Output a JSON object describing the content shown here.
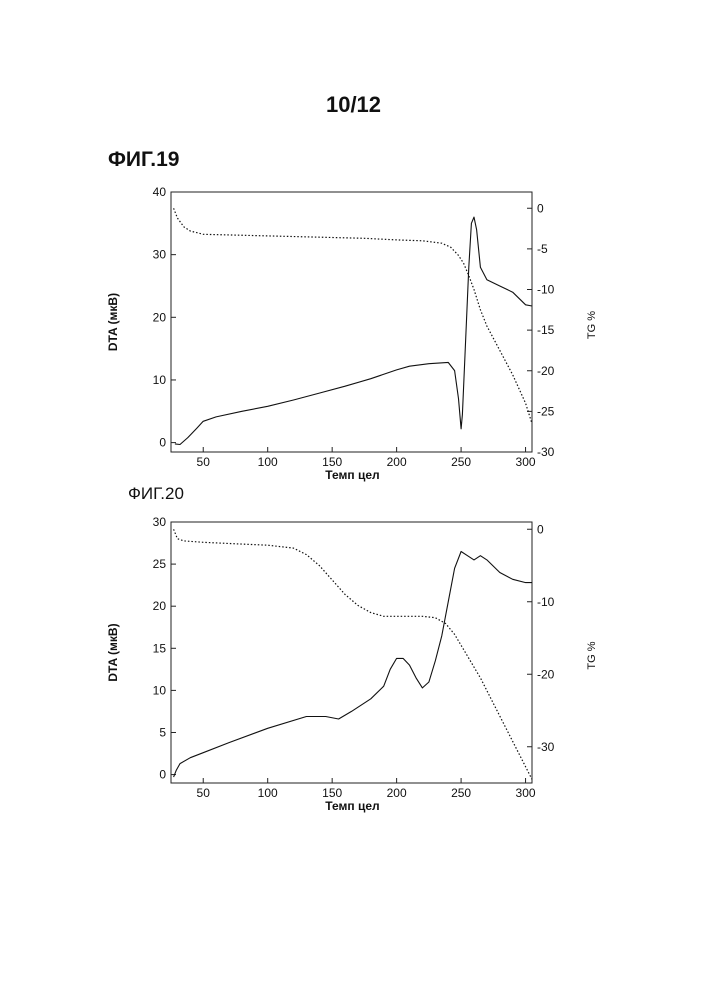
{
  "page": {
    "number": "10/12"
  },
  "figures": [
    {
      "label": "ФИГ.19"
    },
    {
      "label": "ФИГ.20"
    }
  ],
  "chart_data": [
    {
      "type": "line",
      "title": "",
      "xlabel": "Темп цел",
      "ylabel": "DTA (мкВ)",
      "y2label": "TG %",
      "xlim": [
        25,
        305
      ],
      "ylim": [
        -1.5,
        40
      ],
      "y2lim": [
        -30,
        2
      ],
      "xticks": [
        50,
        100,
        150,
        200,
        250,
        300
      ],
      "yticks": [
        0,
        10,
        20,
        30,
        40
      ],
      "y2ticks": [
        0,
        -5,
        -10,
        -15,
        -20,
        -25,
        -30
      ],
      "grid": false,
      "series": [
        {
          "axis": "left",
          "style": "solid",
          "x": [
            28,
            32,
            38,
            45,
            50,
            60,
            80,
            100,
            120,
            140,
            160,
            180,
            200,
            210,
            225,
            240,
            245,
            248,
            250,
            251,
            253,
            256,
            258,
            260,
            262,
            265,
            270,
            280,
            290,
            300,
            305
          ],
          "y": [
            -0.2,
            -0.3,
            0.8,
            2.3,
            3.4,
            4.1,
            5.0,
            5.8,
            6.8,
            7.9,
            9.0,
            10.2,
            11.6,
            12.2,
            12.6,
            12.8,
            11.5,
            7.0,
            2.2,
            4.5,
            14.0,
            28.0,
            35.0,
            36.0,
            34.0,
            28.0,
            26.0,
            25.0,
            24.0,
            22.0,
            21.8
          ]
        },
        {
          "axis": "right",
          "style": "dotted",
          "x": [
            27,
            30,
            35,
            40,
            50,
            75,
            100,
            125,
            150,
            175,
            200,
            220,
            235,
            242,
            248,
            252,
            256,
            260,
            265,
            270,
            280,
            290,
            300,
            305
          ],
          "y": [
            0.0,
            -1.2,
            -2.3,
            -2.8,
            -3.2,
            -3.3,
            -3.4,
            -3.5,
            -3.6,
            -3.7,
            -3.9,
            -4.0,
            -4.3,
            -4.8,
            -5.8,
            -6.8,
            -8.3,
            -10.0,
            -12.5,
            -14.5,
            -17.5,
            -20.5,
            -24.0,
            -26.5
          ]
        }
      ]
    },
    {
      "type": "line",
      "title": "",
      "xlabel": "Темп цел",
      "ylabel": "DTA (мкВ)",
      "y2label": "TG %",
      "xlim": [
        25,
        305
      ],
      "ylim": [
        -1,
        30
      ],
      "y2lim": [
        -35,
        1
      ],
      "xticks": [
        50,
        100,
        150,
        200,
        250,
        300
      ],
      "yticks": [
        0,
        5,
        10,
        15,
        20,
        25,
        30
      ],
      "y2ticks": [
        0,
        -10,
        -20,
        -30
      ],
      "grid": false,
      "series": [
        {
          "axis": "left",
          "style": "solid",
          "x": [
            27,
            29,
            32,
            40,
            50,
            70,
            100,
            130,
            145,
            155,
            165,
            180,
            190,
            195,
            200,
            205,
            210,
            215,
            220,
            225,
            230,
            235,
            240,
            245,
            250,
            255,
            260,
            265,
            270,
            280,
            290,
            300,
            305
          ],
          "y": [
            -0.3,
            0.5,
            1.3,
            2.0,
            2.6,
            3.8,
            5.5,
            6.9,
            6.9,
            6.6,
            7.5,
            9.0,
            10.5,
            12.5,
            13.8,
            13.8,
            13.0,
            11.5,
            10.3,
            11.0,
            13.5,
            16.5,
            20.5,
            24.5,
            26.5,
            26.0,
            25.5,
            26.0,
            25.5,
            24.0,
            23.2,
            22.8,
            22.8
          ]
        },
        {
          "axis": "right",
          "style": "dotted",
          "x": [
            27,
            30,
            35,
            50,
            75,
            100,
            120,
            130,
            140,
            150,
            160,
            170,
            180,
            190,
            200,
            220,
            230,
            238,
            245,
            255,
            265,
            275,
            285,
            295,
            305
          ],
          "y": [
            0.0,
            -1.3,
            -1.6,
            -1.8,
            -2.0,
            -2.2,
            -2.6,
            -3.5,
            -5.0,
            -7.0,
            -9.0,
            -10.5,
            -11.5,
            -12.0,
            -12.0,
            -12.0,
            -12.2,
            -13.0,
            -14.5,
            -17.5,
            -20.5,
            -24.0,
            -27.5,
            -31.0,
            -34.5
          ]
        }
      ]
    }
  ]
}
